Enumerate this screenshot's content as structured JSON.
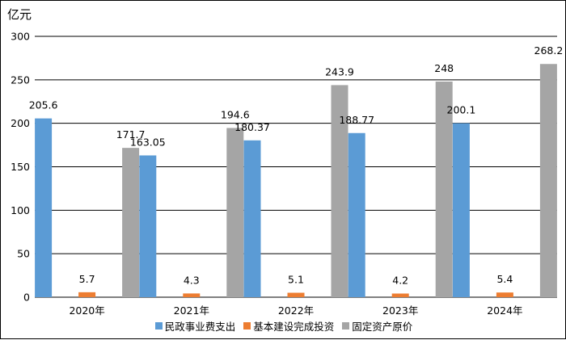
{
  "chart_data": {
    "type": "bar",
    "unit_label": "亿元",
    "categories": [
      "2020年",
      "2021年",
      "2022年",
      "2023年",
      "2024年"
    ],
    "ylim": [
      0,
      300
    ],
    "yticks": [
      0,
      50,
      100,
      150,
      200,
      250,
      300
    ],
    "grid": true,
    "legend_position": "bottom",
    "series": [
      {
        "name": "民政事业费支出",
        "color": "#5B9BD5",
        "values": [
          205.6,
          163.05,
          180.37,
          188.77,
          200.1
        ],
        "labels": [
          "205.6",
          "163.05",
          "180.37",
          "188.77",
          "200.1"
        ]
      },
      {
        "name": "基本建设完成投资",
        "color": "#ED7D31",
        "values": [
          5.7,
          4.3,
          5.1,
          4.2,
          5.4
        ],
        "labels": [
          "5.7",
          "4.3",
          "5.1",
          "4.2",
          "5.4"
        ]
      },
      {
        "name": "固定资产原价",
        "color": "#A5A5A5",
        "values": [
          171.7,
          194.6,
          243.9,
          248,
          268.2
        ],
        "labels": [
          "171.7",
          "194.6",
          "243.9",
          "248",
          "268.2"
        ]
      }
    ]
  }
}
